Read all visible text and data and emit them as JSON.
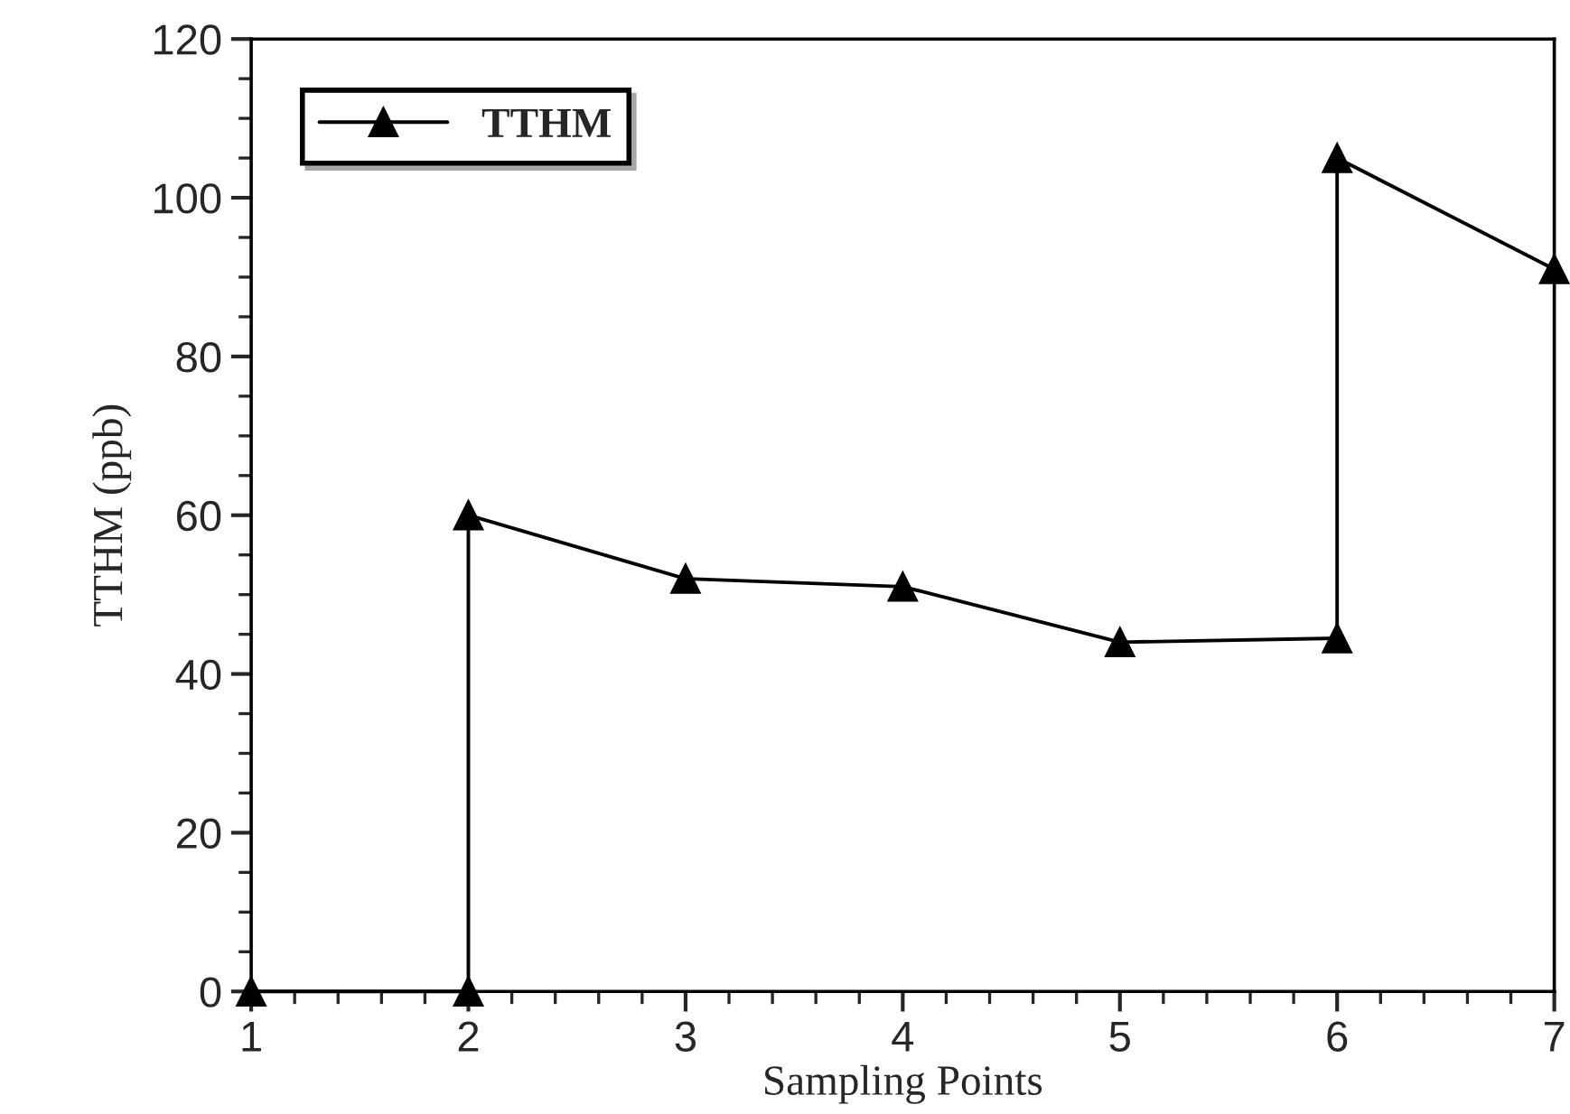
{
  "chart_data": {
    "type": "line",
    "xlabel": "Sampling Points",
    "ylabel": "TTHM (ppb)",
    "series": [
      {
        "name": "TTHM",
        "color": "#000000",
        "x": [
          1,
          2,
          2,
          3,
          4,
          5,
          6,
          6,
          7
        ],
        "values": [
          0,
          0,
          60,
          52,
          51,
          44,
          44.5,
          105,
          91
        ]
      }
    ],
    "xlim": [
      1,
      7
    ],
    "xticks": [
      1,
      2,
      3,
      4,
      5,
      6,
      7
    ],
    "ylim": [
      0,
      120
    ],
    "yticks": [
      0,
      20,
      40,
      60,
      80,
      100,
      120
    ],
    "marker": "triangle",
    "line_style": "solid",
    "legend": "top left",
    "grid": false
  }
}
